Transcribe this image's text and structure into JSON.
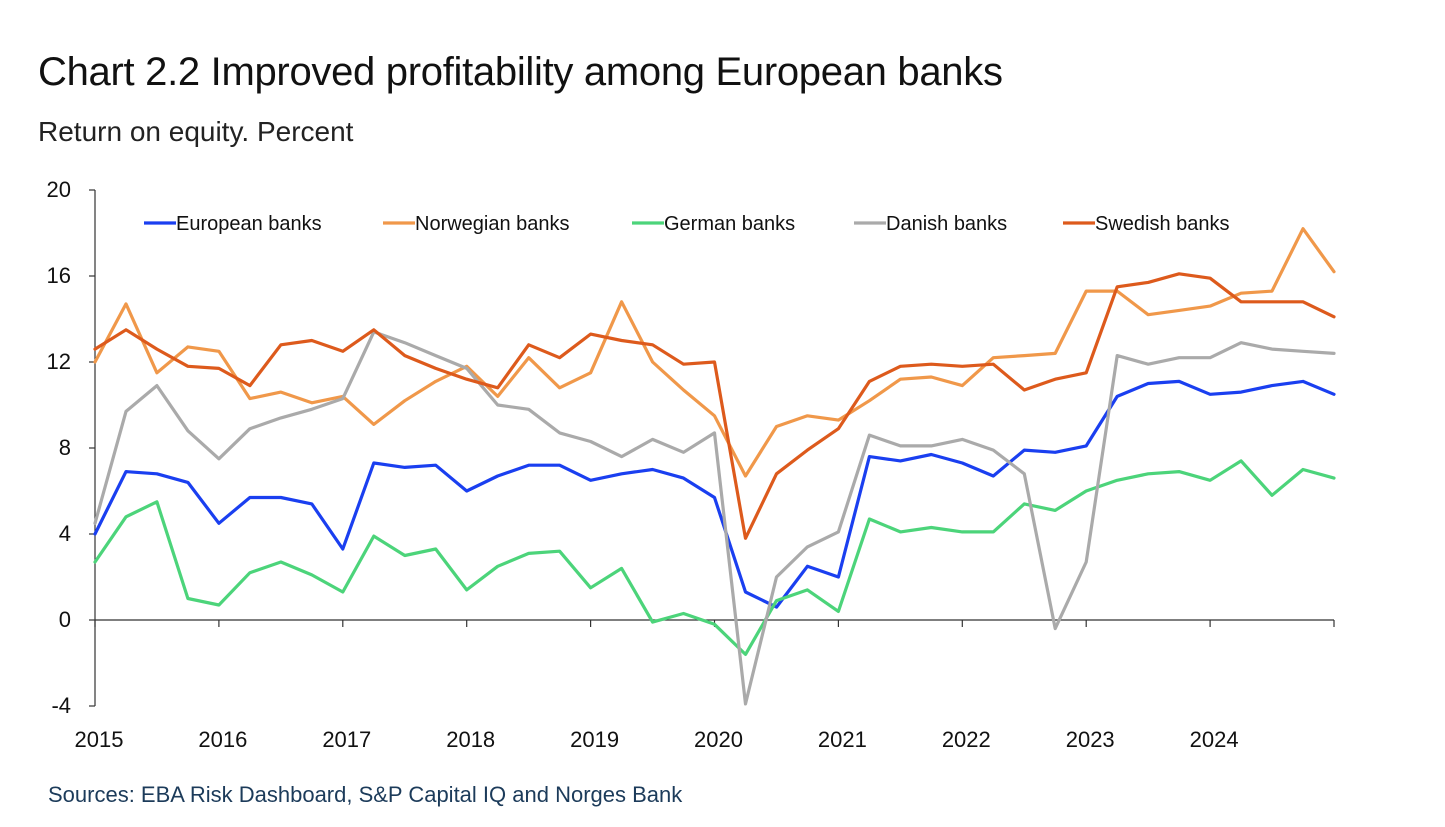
{
  "title": "Chart 2.2 Improved profitability among European banks",
  "subtitle": "Return on equity. Percent",
  "source": "Sources: EBA Risk Dashboard, S&P Capital IQ and Norges Bank",
  "chart_data": {
    "type": "line",
    "title": "Chart 2.2 Improved profitability among European banks",
    "ylabel": "Return on equity. Percent",
    "xlabel": "",
    "ylim": [
      -4,
      20
    ],
    "yticks": [
      -4,
      0,
      4,
      8,
      12,
      16,
      20
    ],
    "year_labels": [
      "2015",
      "2016",
      "2017",
      "2018",
      "2019",
      "2020",
      "2021",
      "2022",
      "2023",
      "2024"
    ],
    "x": [
      "2015Q1",
      "2015Q2",
      "2015Q3",
      "2015Q4",
      "2016Q1",
      "2016Q2",
      "2016Q3",
      "2016Q4",
      "2017Q1",
      "2017Q2",
      "2017Q3",
      "2017Q4",
      "2018Q1",
      "2018Q2",
      "2018Q3",
      "2018Q4",
      "2019Q1",
      "2019Q2",
      "2019Q3",
      "2019Q4",
      "2020Q1",
      "2020Q2",
      "2020Q3",
      "2020Q4",
      "2021Q1",
      "2021Q2",
      "2021Q3",
      "2021Q4",
      "2022Q1",
      "2022Q2",
      "2022Q3",
      "2022Q4",
      "2023Q1",
      "2023Q2",
      "2023Q3",
      "2023Q4",
      "2024Q1",
      "2024Q2",
      "2024Q3",
      "2024Q4",
      "2025Q1"
    ],
    "legend_position": "top",
    "series": [
      {
        "name": "European banks",
        "color": "#1a3ff0",
        "values": [
          4.0,
          6.9,
          6.8,
          6.4,
          4.5,
          5.7,
          5.7,
          5.4,
          3.3,
          7.3,
          7.1,
          7.2,
          6.0,
          6.7,
          7.2,
          7.2,
          6.5,
          6.8,
          7.0,
          6.6,
          5.7,
          1.3,
          0.6,
          2.5,
          2.0,
          7.6,
          7.4,
          7.7,
          7.3,
          6.7,
          7.9,
          7.8,
          8.1,
          10.4,
          11.0,
          11.1,
          10.5,
          10.6,
          10.9,
          11.1,
          10.5
        ]
      },
      {
        "name": "Norwegian banks",
        "color": "#f0984a",
        "values": [
          12.0,
          14.7,
          11.5,
          12.7,
          12.5,
          10.3,
          10.6,
          10.1,
          10.4,
          9.1,
          10.2,
          11.1,
          11.8,
          10.4,
          12.2,
          10.8,
          11.5,
          14.8,
          12.0,
          10.7,
          9.5,
          6.7,
          9.0,
          9.5,
          9.3,
          10.2,
          11.2,
          11.3,
          10.9,
          12.2,
          12.3,
          12.4,
          15.3,
          15.3,
          14.2,
          14.4,
          14.6,
          15.2,
          15.3,
          18.2,
          16.2
        ]
      },
      {
        "name": "German banks",
        "color": "#4cd47a",
        "values": [
          2.7,
          4.8,
          5.5,
          1.0,
          0.7,
          2.2,
          2.7,
          2.1,
          1.3,
          3.9,
          3.0,
          3.3,
          1.4,
          2.5,
          3.1,
          3.2,
          1.5,
          2.4,
          -0.1,
          0.3,
          -0.2,
          -1.6,
          0.9,
          1.4,
          0.4,
          4.7,
          4.1,
          4.3,
          4.1,
          4.1,
          5.4,
          5.1,
          6.0,
          6.5,
          6.8,
          6.9,
          6.5,
          7.4,
          5.8,
          7.0,
          6.6
        ]
      },
      {
        "name": "Danish banks",
        "color": "#aaaaaa",
        "values": [
          4.5,
          9.7,
          10.9,
          8.8,
          7.5,
          8.9,
          9.4,
          9.8,
          10.3,
          13.4,
          12.9,
          12.3,
          11.7,
          10.0,
          9.8,
          8.7,
          8.3,
          7.6,
          8.4,
          7.8,
          8.7,
          -3.9,
          2.0,
          3.4,
          4.1,
          8.6,
          8.1,
          8.1,
          8.4,
          7.9,
          6.8,
          -0.4,
          2.7,
          12.3,
          11.9,
          12.2,
          12.2,
          12.9,
          12.6,
          12.5,
          12.4
        ]
      },
      {
        "name": "Swedish banks",
        "color": "#dd5a1c",
        "values": [
          12.6,
          13.5,
          12.6,
          11.8,
          11.7,
          10.9,
          12.8,
          13.0,
          12.5,
          13.5,
          12.3,
          11.7,
          11.2,
          10.8,
          12.8,
          12.2,
          13.3,
          13.0,
          12.8,
          11.9,
          12.0,
          3.8,
          6.8,
          7.9,
          8.9,
          11.1,
          11.8,
          11.9,
          11.8,
          11.9,
          10.7,
          11.2,
          11.5,
          15.5,
          15.7,
          16.1,
          15.9,
          14.8,
          14.8,
          14.8,
          14.1
        ]
      }
    ]
  }
}
